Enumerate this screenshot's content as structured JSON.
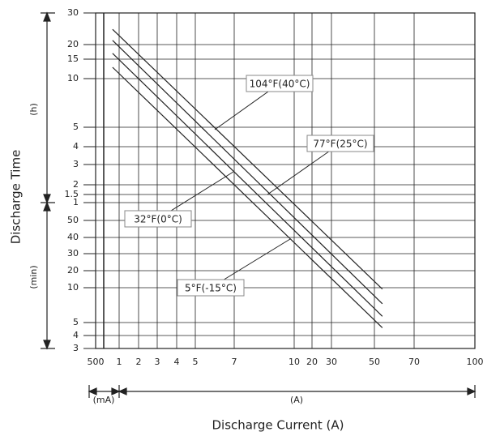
{
  "chart_data": {
    "type": "line",
    "xlabel": "Discharge Current (A)",
    "ylabel": "Discharge Time",
    "axis_units": {
      "hours": "(h)",
      "minutes": "(min)",
      "milliamps": "(mA)",
      "amps": "(A)"
    },
    "xlim": [
      0.5,
      100
    ],
    "xticks": [
      {
        "value": 0.5,
        "label": "500"
      },
      1,
      2,
      3,
      4,
      5,
      7,
      10,
      20,
      30,
      50,
      70,
      100
    ],
    "ylim": [
      3,
      1800
    ],
    "yticks": [
      {
        "value": 1800,
        "label": "30"
      },
      {
        "value": 1200,
        "label": "20"
      },
      {
        "value": 900,
        "label": "15"
      },
      {
        "value": 600,
        "label": "10"
      },
      {
        "value": 300,
        "label": "5"
      },
      {
        "value": 240,
        "label": "4"
      },
      {
        "value": 180,
        "label": "3"
      },
      {
        "value": 120,
        "label": "2"
      },
      {
        "value": 90,
        "label": "1.5"
      },
      {
        "value": 60,
        "label": "1"
      },
      50,
      40,
      30,
      20,
      10,
      5,
      4,
      3
    ],
    "grid": true,
    "series": [
      {
        "name": "104°F(40°C)",
        "color": "#222222",
        "x": [
          0.86,
          54
        ],
        "values": [
          1490,
          9.8
        ]
      },
      {
        "name": "77°F(25°C)",
        "color": "#222222",
        "x": [
          0.86,
          54
        ],
        "values": [
          1280,
          7.7
        ]
      },
      {
        "name": "32°F(0°C)",
        "color": "#222222",
        "x": [
          0.86,
          54
        ],
        "values": [
          1020,
          5.9
        ]
      },
      {
        "name": "5°F(-15°C)",
        "color": "#222222",
        "x": [
          0.86,
          54
        ],
        "values": [
          775,
          4.6
        ]
      }
    ]
  }
}
